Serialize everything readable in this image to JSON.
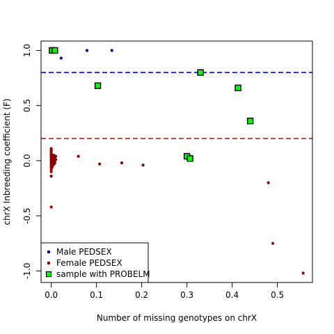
{
  "chart_data": {
    "type": "scatter",
    "xlabel": "Number of missing genotypes on chrX",
    "ylabel": "chrX Inbreeding coefficient (F)",
    "xlim": [
      -0.0225,
      0.5775
    ],
    "ylim": [
      -1.105,
      1.085
    ],
    "x_ticks": [
      0.0,
      0.1,
      0.2,
      0.3,
      0.4,
      0.5
    ],
    "x_tick_labels": [
      "0.0",
      "0.1",
      "0.2",
      "0.3",
      "0.4",
      "0.5"
    ],
    "y_ticks": [
      1.0,
      0.5,
      0.0,
      -0.5,
      -1.0
    ],
    "y_tick_labels": [
      "1.0",
      "0.5",
      "0.0",
      "-0.5",
      "-1.0"
    ],
    "reference_lines": [
      {
        "y": 0.8,
        "color": "#0000ff",
        "style": "dashed"
      },
      {
        "y": 0.2,
        "color": "#ff0000",
        "style": "dashed"
      }
    ],
    "legend": {
      "position": "bottom-left",
      "entries": [
        {
          "label": "Male PEDSEX",
          "color": "#00008b",
          "marker": "dot"
        },
        {
          "label": "Female PEDSEX",
          "color": "#8b0000",
          "marker": "dot"
        },
        {
          "label": "sample with PROBELM",
          "color": "#00ff00",
          "marker": "square"
        }
      ]
    },
    "series": [
      {
        "color": "#00008b",
        "marker": "dot",
        "points": [
          [
            0.002,
            1.0
          ],
          [
            0.005,
            1.0
          ],
          [
            0.008,
            1.0
          ],
          [
            0.022,
            0.93
          ],
          [
            0.079,
            1.0
          ],
          [
            0.134,
            1.0
          ]
        ]
      },
      {
        "color": "#8b0000",
        "marker": "dot",
        "points": [
          [
            0.0,
            0.11
          ],
          [
            0.0,
            0.1
          ],
          [
            0.0,
            0.09
          ],
          [
            0.0,
            0.08
          ],
          [
            0.0,
            0.07
          ],
          [
            0.0,
            0.06
          ],
          [
            0.0,
            0.05
          ],
          [
            0.0,
            0.04
          ],
          [
            0.0,
            0.03
          ],
          [
            0.0,
            0.02
          ],
          [
            0.0,
            0.01
          ],
          [
            0.0,
            0.0
          ],
          [
            0.0,
            -0.01
          ],
          [
            0.0,
            -0.02
          ],
          [
            0.0,
            -0.03
          ],
          [
            0.0,
            -0.04
          ],
          [
            0.0,
            -0.05
          ],
          [
            0.0,
            -0.06
          ],
          [
            0.0,
            -0.08
          ],
          [
            0.0,
            -0.1
          ],
          [
            0.0,
            -0.14
          ],
          [
            0.002,
            0.05
          ],
          [
            0.002,
            0.02
          ],
          [
            0.002,
            -0.02
          ],
          [
            0.002,
            -0.06
          ],
          [
            0.004,
            0.04
          ],
          [
            0.004,
            0.0
          ],
          [
            0.004,
            -0.04
          ],
          [
            0.006,
            0.05
          ],
          [
            0.006,
            0.02
          ],
          [
            0.006,
            -0.01
          ],
          [
            0.006,
            -0.03
          ],
          [
            0.008,
            0.03
          ],
          [
            0.008,
            0.0
          ],
          [
            0.008,
            -0.02
          ],
          [
            0.01,
            0.04
          ],
          [
            0.01,
            0.01
          ],
          [
            0.0,
            -0.42
          ],
          [
            0.06,
            0.04
          ],
          [
            0.107,
            -0.03
          ],
          [
            0.156,
            -0.02
          ],
          [
            0.203,
            -0.04
          ],
          [
            0.48,
            -0.2
          ],
          [
            0.49,
            -0.75
          ],
          [
            0.557,
            -1.02
          ]
        ]
      },
      {
        "color": "#00ff00",
        "marker": "square",
        "points": [
          [
            0.002,
            1.0
          ],
          [
            0.008,
            1.0
          ],
          [
            0.103,
            0.68
          ],
          [
            0.33,
            0.8
          ],
          [
            0.413,
            0.66
          ],
          [
            0.44,
            0.36
          ],
          [
            0.3,
            0.04
          ],
          [
            0.307,
            0.02
          ]
        ]
      }
    ]
  }
}
